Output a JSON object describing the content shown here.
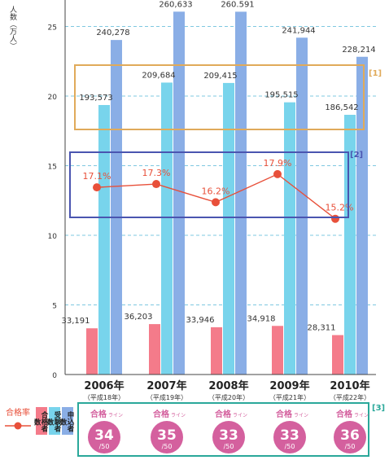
{
  "chart_data": {
    "type": "bar",
    "ylabel": "人数（万人）",
    "ylim": [
      0,
      26
    ],
    "yticks": [
      "0",
      "5",
      "10",
      "15",
      "20",
      "25"
    ],
    "categories": [
      "2006年",
      "2007年",
      "2008年",
      "2009年",
      "2010年"
    ],
    "category_sublabels": [
      "（平成18年）",
      "（平成19年）",
      "（平成20年）",
      "（平成21年）",
      "（平成22年）"
    ],
    "series": [
      {
        "name": "合格者数",
        "color": "#f47b8a",
        "values": [
          33191,
          36203,
          33946,
          34918,
          28311
        ],
        "labels": [
          "33,191",
          "36,203",
          "33,946",
          "34,918",
          "28,311"
        ]
      },
      {
        "name": "受験者数",
        "color": "#78d4ec",
        "values": [
          193573,
          209684,
          209415,
          195515,
          186542
        ],
        "labels": [
          "193,573",
          "209,684",
          "209,415",
          "195,515",
          "186,542"
        ]
      },
      {
        "name": "申込者数",
        "color": "#8aaee6",
        "values": [
          240278,
          260633,
          260591,
          241944,
          228214
        ],
        "labels": [
          "240,278",
          "260,633",
          "260.591",
          "241,944",
          "228,214"
        ]
      }
    ],
    "pass_rate": {
      "name": "合格率",
      "color": "#e8503a",
      "values": [
        17.1,
        17.3,
        16.2,
        17.9,
        15.2
      ],
      "labels": [
        "17.1%",
        "17.3%",
        "16.2%",
        "17.9%",
        "15.2%"
      ]
    },
    "pass_line": {
      "label_main": "合格",
      "label_sub": "ライン",
      "values": [
        "34",
        "35",
        "33",
        "33",
        "36"
      ],
      "denominator": "/50",
      "color": "#d4609e"
    },
    "annotations": [
      "[1]",
      "[2]",
      "[3]"
    ],
    "legend_placement": "bottom-left",
    "grid": true
  }
}
